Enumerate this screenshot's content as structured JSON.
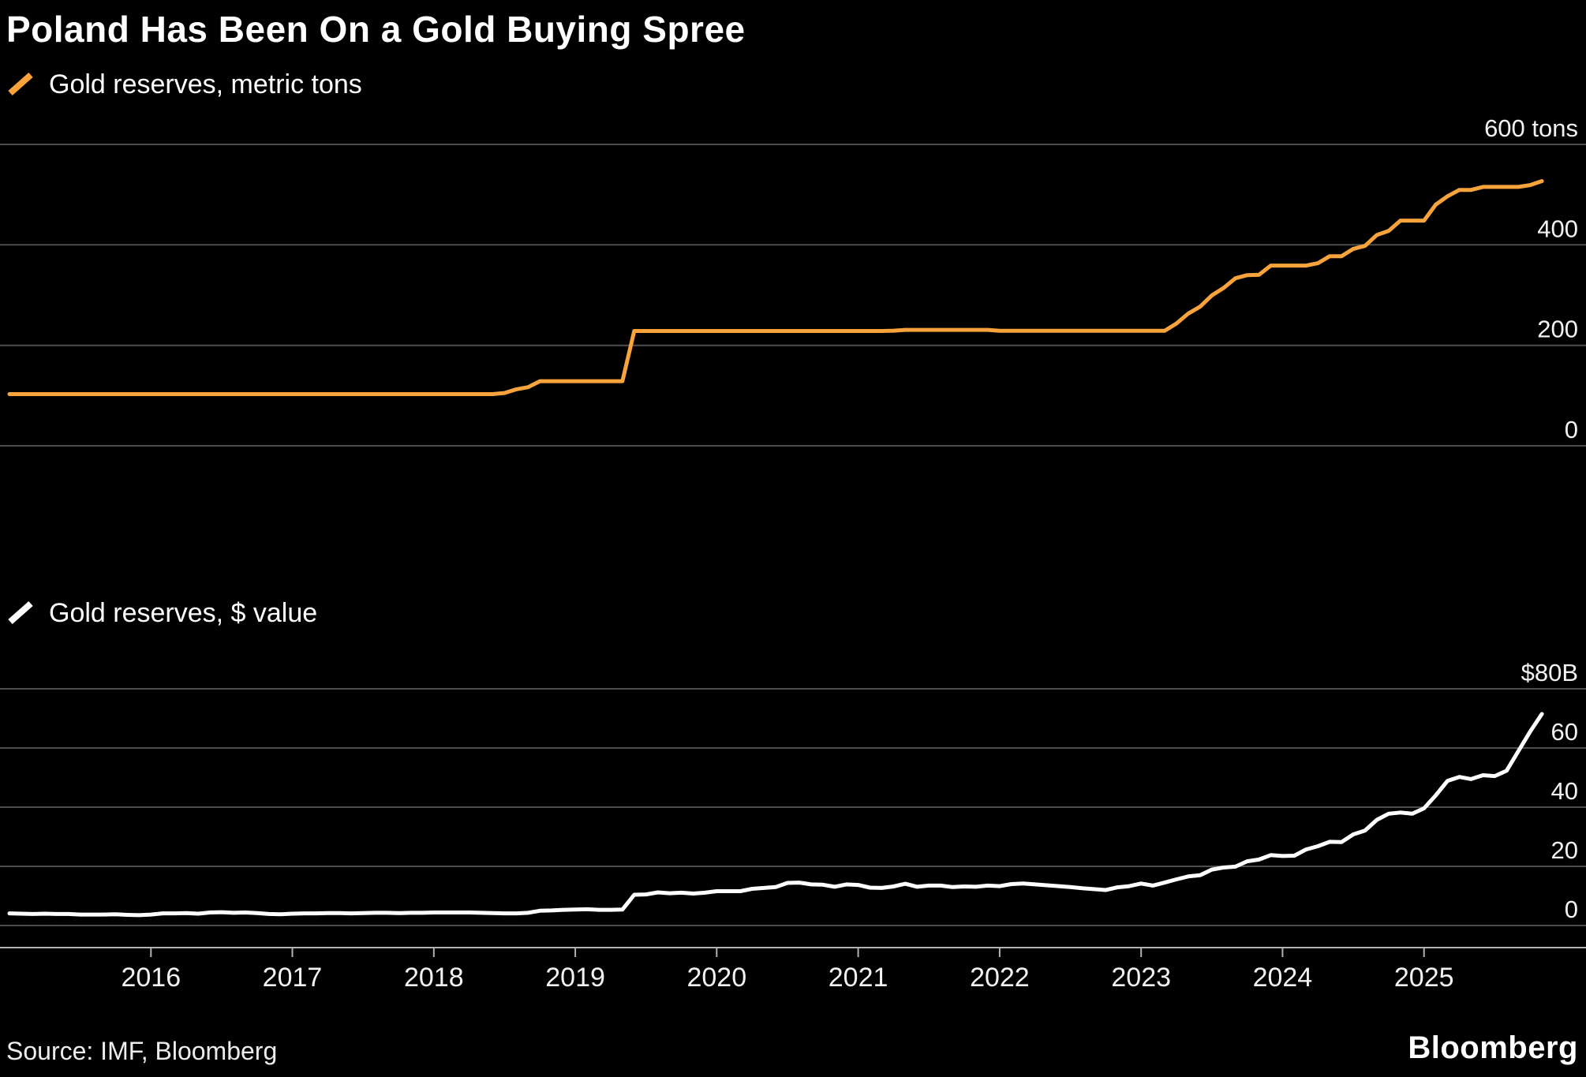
{
  "title": "Poland Has Been On a Gold Buying Spree",
  "footer": {
    "source": "Source: IMF, Bloomberg",
    "brand": "Bloomberg"
  },
  "colors": {
    "background": "#000000",
    "grid": "#4d4d4d",
    "axis": "#b3b3b3",
    "label": "#f2f2f2",
    "orange": "#f8a33b",
    "white": "#ffffff"
  },
  "chart_data": [
    {
      "type": "line",
      "title": "Gold reserves, metric tons",
      "color": "#f8a33b",
      "ylim": [
        0,
        600
      ],
      "yticks": [
        0,
        200,
        400,
        600
      ],
      "ytick_labels": [
        "0",
        "200",
        "400",
        "600 tons"
      ],
      "xlim": [
        2015.0,
        2025.95
      ],
      "x_start": 2015.0,
      "x_step": 0.0833333,
      "grid": true,
      "legend_position": "top-left",
      "show_x_axis": false,
      "values": [
        102.9,
        102.9,
        102.9,
        102.9,
        102.9,
        102.9,
        102.9,
        102.9,
        102.9,
        102.9,
        102.9,
        102.9,
        102.9,
        102.9,
        102.9,
        102.9,
        102.9,
        102.9,
        102.9,
        102.9,
        102.9,
        102.9,
        102.9,
        102.9,
        102.9,
        102.9,
        102.9,
        102.9,
        102.9,
        102.9,
        102.9,
        102.9,
        102.9,
        102.9,
        102.9,
        102.9,
        102.9,
        102.9,
        102.9,
        102.9,
        102.9,
        102.9,
        105.0,
        112.4,
        116.7,
        128.6,
        128.6,
        128.6,
        128.6,
        128.6,
        128.6,
        128.6,
        128.6,
        228.6,
        228.6,
        228.6,
        228.6,
        228.6,
        228.6,
        228.6,
        228.6,
        228.6,
        228.6,
        228.6,
        228.6,
        228.6,
        228.6,
        228.6,
        228.6,
        228.6,
        228.6,
        228.6,
        228.6,
        228.6,
        228.6,
        229.1,
        230.8,
        230.8,
        230.8,
        230.8,
        230.8,
        230.8,
        230.8,
        230.8,
        228.8,
        228.8,
        228.8,
        228.8,
        228.8,
        228.8,
        228.8,
        228.8,
        228.8,
        228.8,
        228.8,
        228.8,
        228.8,
        228.8,
        228.8,
        243.5,
        263.2,
        276.9,
        299.3,
        314.2,
        333.5,
        339.7,
        340.4,
        358.7,
        358.7,
        358.7,
        358.7,
        363.4,
        377.4,
        377.4,
        392.0,
        398.0,
        419.7,
        427.9,
        448.2,
        448.2,
        448.2,
        480.2,
        496.8,
        509.3,
        509.3,
        515.3,
        515.3,
        515.3,
        515.3,
        519.0,
        527.0
      ]
    },
    {
      "type": "line",
      "title": "Gold reserves, $ value",
      "color": "#ffffff",
      "ylim": [
        0,
        80
      ],
      "yticks": [
        0,
        20,
        40,
        60,
        80
      ],
      "ytick_labels": [
        "0",
        "20",
        "40",
        "60",
        "$80B"
      ],
      "xlim": [
        2015.0,
        2025.95
      ],
      "x_start": 2015.0,
      "x_step": 0.0833333,
      "grid": true,
      "legend_position": "top-left",
      "show_x_axis": true,
      "xticks": [
        2016,
        2017,
        2018,
        2019,
        2020,
        2021,
        2022,
        2023,
        2024,
        2025
      ],
      "xtick_labels": [
        "2016",
        "2017",
        "2018",
        "2019",
        "2020",
        "2021",
        "2022",
        "2023",
        "2024",
        "2025"
      ],
      "values": [
        4.1,
        4.0,
        3.9,
        4.0,
        3.9,
        3.9,
        3.7,
        3.7,
        3.7,
        3.8,
        3.6,
        3.5,
        3.7,
        4.1,
        4.1,
        4.2,
        4.0,
        4.4,
        4.5,
        4.3,
        4.4,
        4.2,
        3.9,
        3.8,
        4.0,
        4.1,
        4.1,
        4.2,
        4.2,
        4.1,
        4.2,
        4.3,
        4.3,
        4.2,
        4.3,
        4.3,
        4.4,
        4.4,
        4.4,
        4.4,
        4.3,
        4.2,
        4.1,
        4.1,
        4.3,
        5.0,
        5.1,
        5.3,
        5.4,
        5.5,
        5.3,
        5.3,
        5.4,
        10.4,
        10.5,
        11.2,
        10.9,
        11.1,
        10.8,
        11.1,
        11.6,
        11.6,
        11.6,
        12.4,
        12.7,
        13.0,
        14.4,
        14.5,
        13.9,
        13.8,
        13.1,
        13.9,
        13.7,
        12.8,
        12.7,
        13.2,
        14.1,
        13.1,
        13.5,
        13.5,
        13.0,
        13.2,
        13.1,
        13.5,
        13.3,
        14.0,
        14.2,
        13.9,
        13.6,
        13.3,
        13.0,
        12.6,
        12.3,
        12.0,
        12.9,
        13.3,
        14.2,
        13.5,
        14.5,
        15.6,
        16.6,
        17.0,
        18.9,
        19.6,
        19.9,
        21.7,
        22.3,
        23.8,
        23.5,
        23.6,
        25.7,
        26.8,
        28.3,
        28.2,
        30.8,
        32.1,
        35.7,
        37.8,
        38.2,
        37.8,
        39.6,
        44.0,
        48.9,
        50.2,
        49.5,
        50.8,
        50.5,
        52.3,
        58.9,
        65.5,
        71.5
      ]
    }
  ]
}
